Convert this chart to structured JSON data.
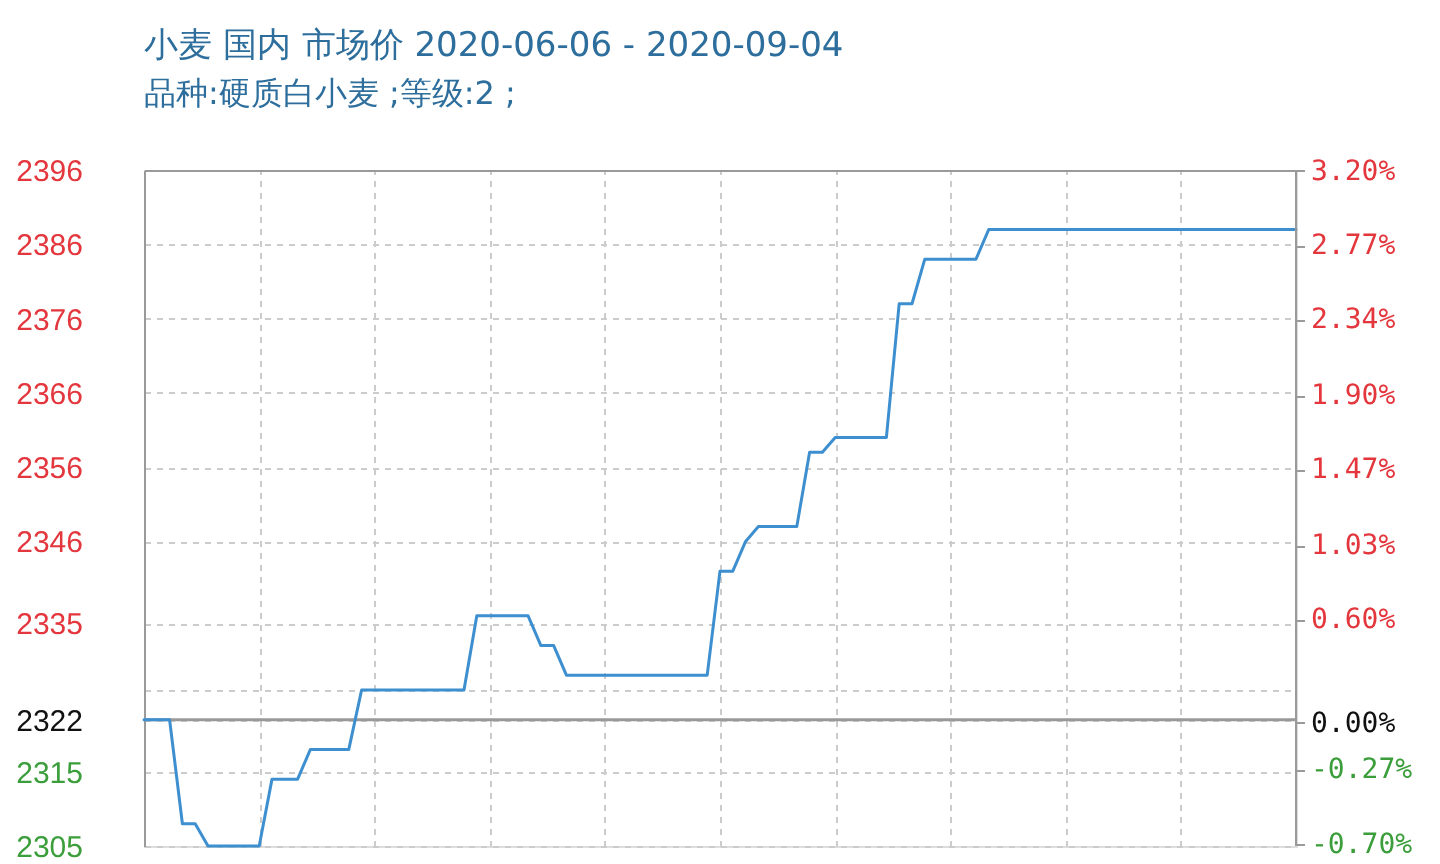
{
  "chart_data": {
    "type": "line",
    "title": "小麦 国内 市场价 2020-06-06 - 2020-09-04",
    "subtitle": "品种:硬质白小麦 ;等级:2 ;",
    "categories": [
      null,
      null,
      null,
      null,
      null,
      null,
      null,
      null,
      null,
      null,
      null,
      null,
      null,
      null,
      null,
      null,
      null,
      null,
      null,
      null,
      null,
      null,
      null,
      null,
      null,
      null,
      null,
      null,
      null,
      null,
      null,
      null,
      null,
      null,
      null,
      null,
      null,
      null,
      null,
      null,
      null,
      null,
      null,
      null,
      null,
      null,
      null,
      null,
      null,
      null,
      null,
      null,
      null,
      null,
      null,
      null,
      null,
      null,
      null,
      null,
      null,
      null,
      null,
      null,
      null,
      null,
      null,
      null,
      null,
      null,
      null,
      null,
      null,
      null,
      null,
      null,
      null,
      null,
      null,
      null,
      null,
      null,
      null,
      null,
      null,
      null,
      null,
      null,
      null,
      null,
      null
    ],
    "values": [
      2322,
      2322,
      2322,
      2308,
      2308,
      2305,
      null,
      null,
      null,
      2305,
      2314,
      2314,
      2314,
      2318,
      2318,
      2318,
      2318,
      2326,
      2326,
      2326,
      2326,
      2326,
      2326,
      2326,
      2326,
      2326,
      2336,
      2336,
      2336,
      2336,
      2336,
      2332,
      2332,
      2328,
      2328,
      2328,
      2328,
      2328,
      2328,
      2328,
      2328,
      2328,
      2328,
      2328,
      2328,
      2342,
      2342,
      2346,
      2348,
      2348,
      2348,
      2348,
      2358,
      2358,
      2360,
      2360,
      2360,
      2360,
      2360,
      2378,
      2378,
      2384,
      2384,
      2384,
      2384,
      2384,
      2388,
      2388,
      2388,
      2388,
      2388,
      2388,
      2388,
      2388,
      2388,
      2388,
      2388,
      2388,
      2388,
      2388,
      2388,
      2388,
      2388,
      2388,
      2388,
      2388,
      2388,
      2388,
      2388,
      2388,
      2388
    ],
    "color": "#3d8fcf",
    "marker": "none",
    "line_style": "solid",
    "ylim": [
      2305,
      2396
    ],
    "yticks": [
      2396,
      2386,
      2376,
      2366,
      2356,
      2346,
      2335,
      {
        "value": 2326,
        "label": null
      },
      2322,
      2315,
      2305
    ],
    "y2lim": [
      -0.714,
      3.205
    ],
    "y2ticks": [
      {
        "value": 3.2,
        "label": "3.20%"
      },
      {
        "value": 2.77,
        "label": "2.77%"
      },
      {
        "value": 2.34,
        "label": "2.34%"
      },
      {
        "value": 1.9,
        "label": "1.90%"
      },
      {
        "value": 1.47,
        "label": "1.47%"
      },
      {
        "value": 1.03,
        "label": "1.03%"
      },
      {
        "value": 0.6,
        "label": "0.60%"
      },
      {
        "value": 0,
        "label": "0.00%"
      },
      {
        "value": -0.27,
        "label": "-0.27%"
      },
      {
        "value": -0.7,
        "label": "-0.70%"
      }
    ],
    "ref_lines": [
      {
        "axis": "y",
        "value": 2322,
        "color": "#999999",
        "line_style": "solid"
      }
    ],
    "grid": true,
    "tick_labels": "y"
  }
}
